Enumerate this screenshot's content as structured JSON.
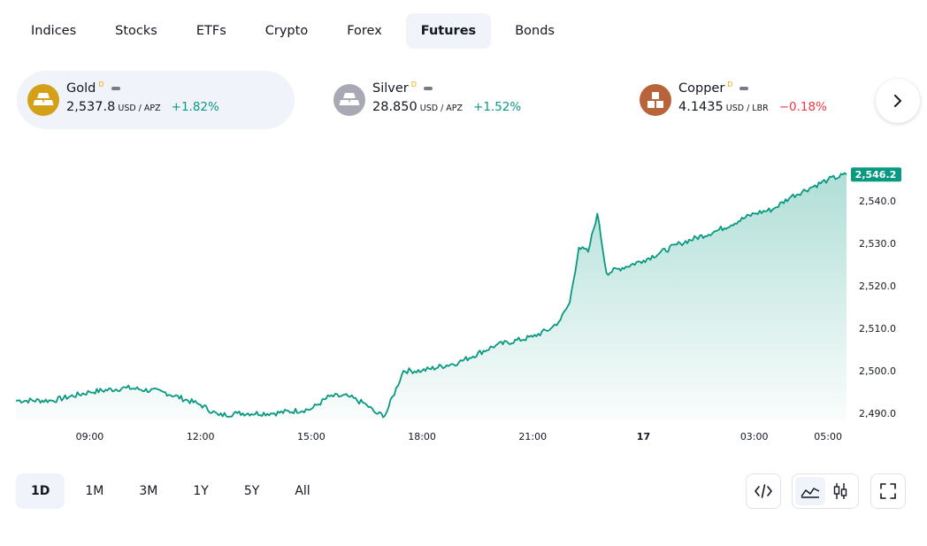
{
  "tabs": [
    "Indices",
    "Stocks",
    "ETFs",
    "Crypto",
    "Forex",
    "Futures",
    "Bonds"
  ],
  "active_tab": "Futures",
  "cards": [
    {
      "name": "Gold",
      "sup": "D",
      "price": "2,537.8",
      "unit": "USD / APZ",
      "change": "+1.82%",
      "change_color": "#089981",
      "icon": "gold-bars-icon",
      "icon_color": "#d4a017"
    },
    {
      "name": "Silver",
      "sup": "D",
      "price": "28.850",
      "unit": "USD / APZ",
      "change": "+1.52%",
      "change_color": "#089981",
      "icon": "silver-bars-icon",
      "icon_color": "#a8a9b4"
    },
    {
      "name": "Copper",
      "sup": "D",
      "price": "4.1435",
      "unit": "USD / LBR",
      "change": "−0.18%",
      "change_color": "#f23645",
      "icon": "copper-blocks-icon",
      "icon_color": "#b8633a"
    }
  ],
  "chart_data": {
    "type": "area",
    "x_ticks": [
      "09:00",
      "12:00",
      "15:00",
      "18:00",
      "21:00",
      "17",
      "03:00",
      "05:00"
    ],
    "y_ticks": [
      "2,540.0",
      "2,530.0",
      "2,520.0",
      "2,510.0",
      "2,500.0",
      "2,490.0"
    ],
    "ylim": [
      2488,
      2550
    ],
    "last_value": "2,546.2",
    "line_color": "#089981",
    "x": [
      "07:00",
      "08:00",
      "09:00",
      "10:00",
      "11:00",
      "12:00",
      "12:30",
      "13:00",
      "14:00",
      "15:00",
      "15:30",
      "16:00",
      "16:30",
      "16:45",
      "17:00",
      "17:30",
      "18:00",
      "19:00",
      "20:00",
      "21:00",
      "21:30",
      "21:45",
      "22:00",
      "22:15",
      "22:30",
      "22:45",
      "23:00",
      "00:00",
      "01:00",
      "02:00",
      "03:00",
      "03:30",
      "04:00",
      "04:30",
      "05:00",
      "05:30"
    ],
    "values": [
      2493,
      2493,
      2495,
      2496,
      2495,
      2492,
      2489.5,
      2490,
      2490,
      2491,
      2494,
      2494,
      2492,
      2490,
      2489.5,
      2500,
      2500,
      2502,
      2506,
      2508,
      2510,
      2512,
      2516,
      2529,
      2528,
      2537,
      2523,
      2526,
      2530,
      2533,
      2537,
      2538,
      2541,
      2543,
      2545,
      2546.2
    ]
  },
  "ranges": [
    "1D",
    "1M",
    "3M",
    "1Y",
    "5Y",
    "All"
  ],
  "active_range": "1D",
  "tools": {
    "embed": "embed-code-icon",
    "area": "area-chart-icon",
    "candles": "candlestick-icon",
    "fullscreen": "fullscreen-icon"
  }
}
